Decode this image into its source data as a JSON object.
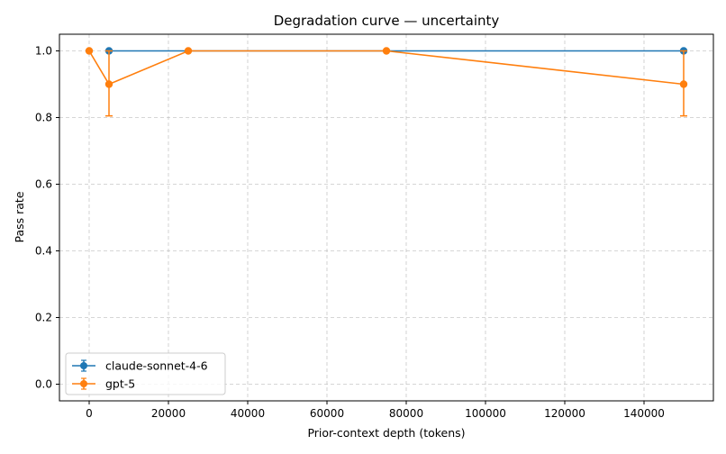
{
  "chart_data": {
    "type": "line",
    "title": "Degradation curve — uncertainty",
    "xlabel": "Prior-context depth (tokens)",
    "ylabel": "Pass rate",
    "xlim": [
      -7500,
      157500
    ],
    "ylim": [
      -0.05,
      1.05
    ],
    "x_ticks": [
      0,
      20000,
      40000,
      60000,
      80000,
      100000,
      120000,
      140000
    ],
    "x_tick_labels": [
      "0",
      "20000",
      "40000",
      "60000",
      "80000",
      "100000",
      "120000",
      "140000"
    ],
    "y_ticks": [
      0.0,
      0.2,
      0.4,
      0.6,
      0.8,
      1.0
    ],
    "y_tick_labels": [
      "0.0",
      "0.2",
      "0.4",
      "0.6",
      "0.8",
      "1.0"
    ],
    "grid": true,
    "legend_position": "lower-left",
    "series": [
      {
        "name": "claude-sonnet-4-6",
        "color": "#1f77b4",
        "x": [
          5000,
          150000
        ],
        "y": [
          1.0,
          1.0
        ],
        "yerr_low": [
          0,
          0
        ],
        "yerr_high": [
          0,
          0
        ]
      },
      {
        "name": "gpt-5",
        "color": "#ff7f0e",
        "x": [
          0,
          5000,
          25000,
          75000,
          150000
        ],
        "y": [
          1.0,
          0.9,
          1.0,
          1.0,
          0.9
        ],
        "yerr_low": [
          0,
          0.095,
          0,
          0,
          0.095
        ],
        "yerr_high": [
          0,
          0.1,
          0,
          0,
          0.1
        ]
      }
    ]
  }
}
